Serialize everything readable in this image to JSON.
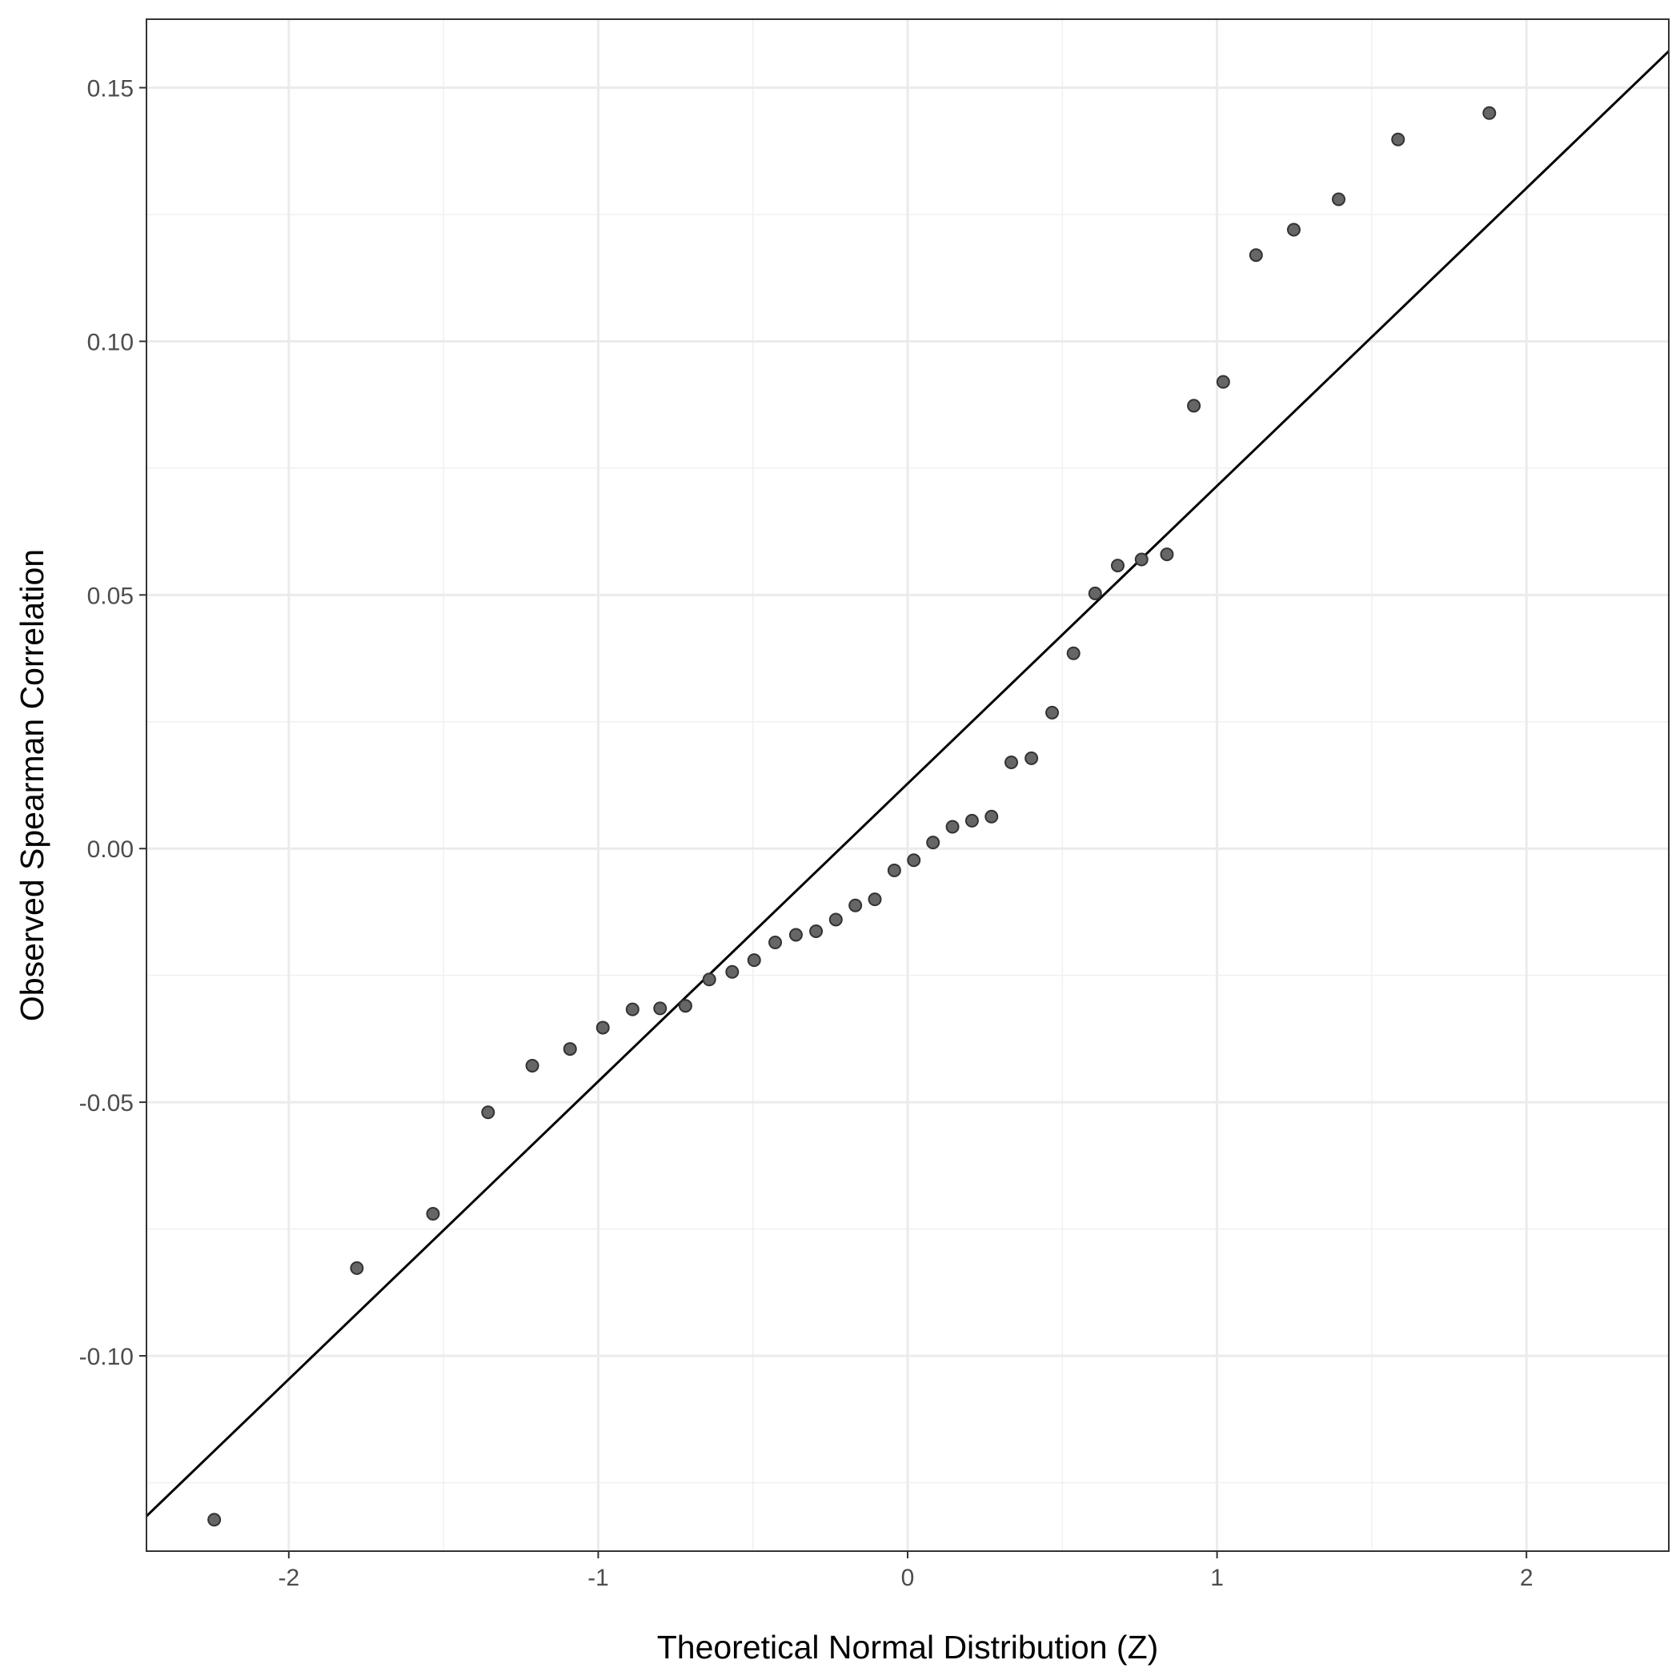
{
  "chart_data": {
    "type": "scatter",
    "title": "",
    "xlabel": "Theoretical Normal Distribution (Z)",
    "ylabel": "Observed Spearman Correlation",
    "xlim": [
      -2.46,
      2.46
    ],
    "ylim": [
      -0.1385,
      0.1635
    ],
    "x_ticks": [
      -2,
      -1,
      0,
      1,
      2
    ],
    "x_tick_labels": [
      "-2",
      "-1",
      "0",
      "1",
      "2"
    ],
    "y_ticks": [
      -0.1,
      -0.05,
      0.0,
      0.05,
      0.1,
      0.15
    ],
    "y_tick_labels": [
      "-0.10",
      "-0.05",
      "0.00",
      "0.05",
      "0.10",
      "0.15"
    ],
    "grid": true,
    "legend": "none",
    "point_color": "#666666",
    "point_stroke_color": "#333333",
    "line_color": "#000000",
    "reference_line": {
      "intercept": 0.0128,
      "slope": 0.0587
    },
    "points": [
      {
        "x": -2.241,
        "y": -0.1323
      },
      {
        "x": -1.78,
        "y": -0.0827
      },
      {
        "x": -1.534,
        "y": -0.072
      },
      {
        "x": -1.356,
        "y": -0.052
      },
      {
        "x": -1.213,
        "y": -0.0428
      },
      {
        "x": -1.091,
        "y": -0.0395
      },
      {
        "x": -0.985,
        "y": -0.0353
      },
      {
        "x": -0.889,
        "y": -0.0317
      },
      {
        "x": -0.8,
        "y": -0.0315
      },
      {
        "x": -0.718,
        "y": -0.031
      },
      {
        "x": -0.641,
        "y": -0.0258
      },
      {
        "x": -0.567,
        "y": -0.0243
      },
      {
        "x": -0.496,
        "y": -0.022
      },
      {
        "x": -0.428,
        "y": -0.0185
      },
      {
        "x": -0.361,
        "y": -0.017
      },
      {
        "x": -0.296,
        "y": -0.0163
      },
      {
        "x": -0.232,
        "y": -0.014
      },
      {
        "x": -0.169,
        "y": -0.0112
      },
      {
        "x": -0.106,
        "y": -0.01
      },
      {
        "x": -0.043,
        "y": -0.0043
      },
      {
        "x": 0.02,
        "y": -0.0023
      },
      {
        "x": 0.082,
        "y": 0.0012
      },
      {
        "x": 0.145,
        "y": 0.0043
      },
      {
        "x": 0.208,
        "y": 0.0055
      },
      {
        "x": 0.271,
        "y": 0.0063
      },
      {
        "x": 0.335,
        "y": 0.017
      },
      {
        "x": 0.4,
        "y": 0.0178
      },
      {
        "x": 0.467,
        "y": 0.0268
      },
      {
        "x": 0.536,
        "y": 0.0385
      },
      {
        "x": 0.606,
        "y": 0.0503
      },
      {
        "x": 0.679,
        "y": 0.0558
      },
      {
        "x": 0.756,
        "y": 0.057
      },
      {
        "x": 0.838,
        "y": 0.058
      },
      {
        "x": 0.925,
        "y": 0.0873
      },
      {
        "x": 1.02,
        "y": 0.092
      },
      {
        "x": 1.126,
        "y": 0.117
      },
      {
        "x": 1.248,
        "y": 0.122
      },
      {
        "x": 1.393,
        "y": 0.128
      },
      {
        "x": 1.585,
        "y": 0.1398
      },
      {
        "x": 1.88,
        "y": 0.145
      }
    ]
  }
}
